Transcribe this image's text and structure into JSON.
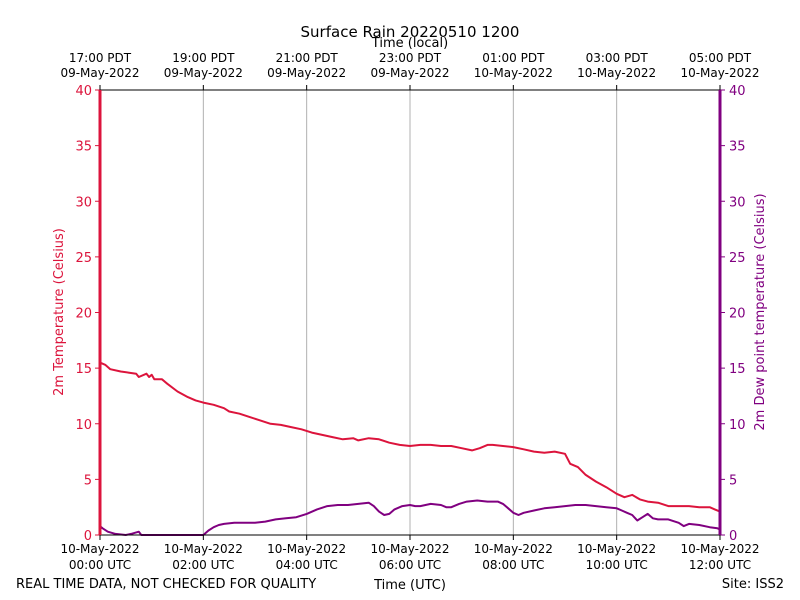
{
  "chart_data": {
    "type": "line",
    "title": "Surface Rain 20220510 1200",
    "xlabel_bottom": "Time (UTC)",
    "xlabel_top": "Time (local)",
    "ylabel_left": "2m Temperature (Celsius)",
    "ylabel_right": "2m Dew point temperature (Celsius)",
    "footer_left": "REAL TIME DATA, NOT CHECKED FOR QUALITY",
    "footer_right": "Site: ISS2",
    "colors": {
      "temperature": "#dc143c",
      "dewpoint": "#800080",
      "grid": "#b0b0b0"
    },
    "xlim_hours": [
      0,
      12
    ],
    "ylim": [
      0,
      40
    ],
    "yticks": [
      0,
      5,
      10,
      15,
      20,
      25,
      30,
      35,
      40
    ],
    "bottom_ticks": [
      {
        "hour": 0,
        "line1": "10-May-2022",
        "line2": "00:00 UTC"
      },
      {
        "hour": 2,
        "line1": "10-May-2022",
        "line2": "02:00 UTC"
      },
      {
        "hour": 4,
        "line1": "10-May-2022",
        "line2": "04:00 UTC"
      },
      {
        "hour": 6,
        "line1": "10-May-2022",
        "line2": "06:00 UTC"
      },
      {
        "hour": 8,
        "line1": "10-May-2022",
        "line2": "08:00 UTC"
      },
      {
        "hour": 10,
        "line1": "10-May-2022",
        "line2": "10:00 UTC"
      },
      {
        "hour": 12,
        "line1": "10-May-2022",
        "line2": "12:00 UTC"
      }
    ],
    "top_ticks": [
      {
        "hour": 0,
        "line1": "17:00 PDT",
        "line2": "09-May-2022"
      },
      {
        "hour": 2,
        "line1": "19:00 PDT",
        "line2": "09-May-2022"
      },
      {
        "hour": 4,
        "line1": "21:00 PDT",
        "line2": "09-May-2022"
      },
      {
        "hour": 6,
        "line1": "23:00 PDT",
        "line2": "09-May-2022"
      },
      {
        "hour": 8,
        "line1": "01:00 PDT",
        "line2": "10-May-2022"
      },
      {
        "hour": 10,
        "line1": "03:00 PDT",
        "line2": "10-May-2022"
      },
      {
        "hour": 12,
        "line1": "05:00 PDT",
        "line2": "10-May-2022"
      }
    ],
    "series": [
      {
        "name": "2m Temperature",
        "axis": "left",
        "points": [
          [
            0,
            0
          ],
          [
            0,
            15.5
          ],
          [
            0.1,
            15.3
          ],
          [
            0.2,
            14.9
          ],
          [
            0.4,
            14.7
          ],
          [
            0.55,
            14.6
          ],
          [
            0.7,
            14.5
          ],
          [
            0.75,
            14.2
          ],
          [
            0.9,
            14.5
          ],
          [
            0.95,
            14.2
          ],
          [
            1.0,
            14.4
          ],
          [
            1.05,
            14.0
          ],
          [
            1.2,
            14.0
          ],
          [
            1.3,
            13.6
          ],
          [
            1.5,
            12.9
          ],
          [
            1.7,
            12.4
          ],
          [
            1.85,
            12.1
          ],
          [
            2.0,
            11.9
          ],
          [
            2.2,
            11.7
          ],
          [
            2.4,
            11.4
          ],
          [
            2.5,
            11.1
          ],
          [
            2.7,
            10.9
          ],
          [
            2.9,
            10.6
          ],
          [
            3.1,
            10.3
          ],
          [
            3.3,
            10.0
          ],
          [
            3.5,
            9.9
          ],
          [
            3.7,
            9.7
          ],
          [
            3.9,
            9.5
          ],
          [
            4.1,
            9.2
          ],
          [
            4.3,
            9.0
          ],
          [
            4.5,
            8.8
          ],
          [
            4.7,
            8.6
          ],
          [
            4.9,
            8.7
          ],
          [
            5.0,
            8.5
          ],
          [
            5.2,
            8.7
          ],
          [
            5.4,
            8.6
          ],
          [
            5.6,
            8.3
          ],
          [
            5.8,
            8.1
          ],
          [
            6.0,
            8.0
          ],
          [
            6.2,
            8.1
          ],
          [
            6.4,
            8.1
          ],
          [
            6.6,
            8.0
          ],
          [
            6.8,
            8.0
          ],
          [
            7.0,
            7.8
          ],
          [
            7.2,
            7.6
          ],
          [
            7.35,
            7.8
          ],
          [
            7.5,
            8.1
          ],
          [
            7.6,
            8.1
          ],
          [
            7.8,
            8.0
          ],
          [
            8.0,
            7.9
          ],
          [
            8.2,
            7.7
          ],
          [
            8.4,
            7.5
          ],
          [
            8.6,
            7.4
          ],
          [
            8.8,
            7.5
          ],
          [
            9.0,
            7.3
          ],
          [
            9.1,
            6.4
          ],
          [
            9.25,
            6.1
          ],
          [
            9.4,
            5.4
          ],
          [
            9.6,
            4.8
          ],
          [
            9.8,
            4.3
          ],
          [
            10.0,
            3.7
          ],
          [
            10.15,
            3.4
          ],
          [
            10.3,
            3.6
          ],
          [
            10.45,
            3.2
          ],
          [
            10.6,
            3.0
          ],
          [
            10.8,
            2.9
          ],
          [
            11.0,
            2.6
          ],
          [
            11.2,
            2.6
          ],
          [
            11.4,
            2.6
          ],
          [
            11.6,
            2.5
          ],
          [
            11.8,
            2.5
          ],
          [
            11.9,
            2.3
          ],
          [
            12.0,
            2.1
          ]
        ]
      },
      {
        "name": "2m Dew point temperature",
        "axis": "right",
        "points": [
          [
            0,
            0.8
          ],
          [
            0.05,
            0.6
          ],
          [
            0.15,
            0.3
          ],
          [
            0.3,
            0.1
          ],
          [
            0.5,
            0.0
          ],
          [
            0.6,
            0.1
          ],
          [
            0.75,
            0.3
          ],
          [
            0.8,
            0.0
          ],
          [
            0.85,
            0.0
          ],
          [
            2.0,
            0.0
          ],
          [
            2.1,
            0.4
          ],
          [
            2.2,
            0.7
          ],
          [
            2.3,
            0.9
          ],
          [
            2.4,
            1.0
          ],
          [
            2.6,
            1.1
          ],
          [
            2.8,
            1.1
          ],
          [
            3.0,
            1.1
          ],
          [
            3.2,
            1.2
          ],
          [
            3.4,
            1.4
          ],
          [
            3.6,
            1.5
          ],
          [
            3.8,
            1.6
          ],
          [
            4.0,
            1.9
          ],
          [
            4.2,
            2.3
          ],
          [
            4.4,
            2.6
          ],
          [
            4.6,
            2.7
          ],
          [
            4.8,
            2.7
          ],
          [
            5.0,
            2.8
          ],
          [
            5.2,
            2.9
          ],
          [
            5.3,
            2.6
          ],
          [
            5.4,
            2.1
          ],
          [
            5.5,
            1.8
          ],
          [
            5.6,
            1.9
          ],
          [
            5.7,
            2.3
          ],
          [
            5.85,
            2.6
          ],
          [
            6.0,
            2.7
          ],
          [
            6.1,
            2.6
          ],
          [
            6.2,
            2.6
          ],
          [
            6.4,
            2.8
          ],
          [
            6.6,
            2.7
          ],
          [
            6.7,
            2.5
          ],
          [
            6.8,
            2.5
          ],
          [
            6.95,
            2.8
          ],
          [
            7.1,
            3.0
          ],
          [
            7.3,
            3.1
          ],
          [
            7.5,
            3.0
          ],
          [
            7.7,
            3.0
          ],
          [
            7.8,
            2.8
          ],
          [
            7.9,
            2.4
          ],
          [
            8.0,
            2.0
          ],
          [
            8.1,
            1.8
          ],
          [
            8.2,
            2.0
          ],
          [
            8.4,
            2.2
          ],
          [
            8.6,
            2.4
          ],
          [
            8.8,
            2.5
          ],
          [
            9.0,
            2.6
          ],
          [
            9.2,
            2.7
          ],
          [
            9.4,
            2.7
          ],
          [
            9.6,
            2.6
          ],
          [
            9.8,
            2.5
          ],
          [
            10.0,
            2.4
          ],
          [
            10.1,
            2.2
          ],
          [
            10.2,
            2.0
          ],
          [
            10.3,
            1.8
          ],
          [
            10.4,
            1.3
          ],
          [
            10.5,
            1.6
          ],
          [
            10.6,
            1.9
          ],
          [
            10.7,
            1.5
          ],
          [
            10.8,
            1.4
          ],
          [
            11.0,
            1.4
          ],
          [
            11.2,
            1.1
          ],
          [
            11.3,
            0.8
          ],
          [
            11.4,
            1.0
          ],
          [
            11.6,
            0.9
          ],
          [
            11.8,
            0.7
          ],
          [
            11.95,
            0.6
          ],
          [
            12.0,
            0.5
          ],
          [
            12.0,
            0.2
          ]
        ]
      }
    ]
  }
}
